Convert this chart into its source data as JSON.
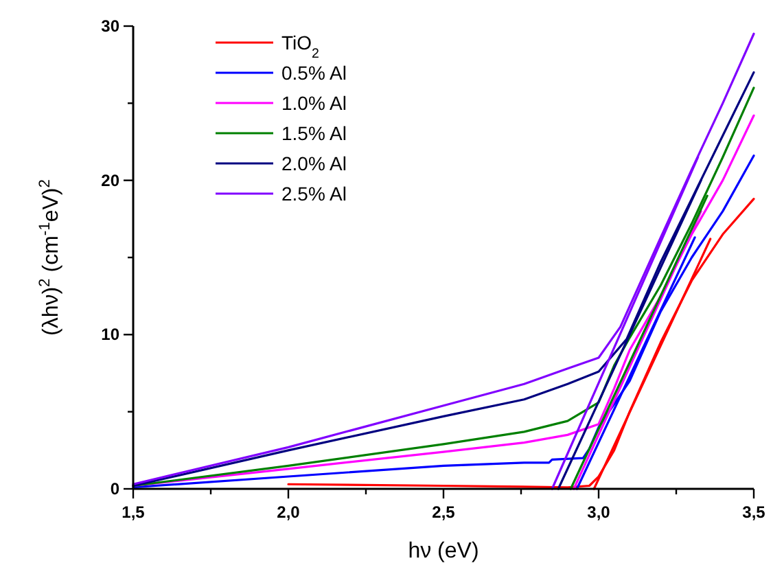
{
  "chart_data": {
    "type": "line",
    "xlabel": "hν (eV)",
    "ylabel": "(λhν)$^{2}$ (cm$^{-1}$eV)$^{2}$",
    "xlim": [
      1.5,
      3.5
    ],
    "xticks": [
      {
        "value": 1.5,
        "label": "1,5"
      },
      {
        "value": 1.75,
        "label": null
      },
      {
        "value": 2.0,
        "label": "2,0"
      },
      {
        "value": 2.25,
        "label": null
      },
      {
        "value": 2.5,
        "label": "2,5"
      },
      {
        "value": 2.75,
        "label": null
      },
      {
        "value": 3.0,
        "label": "3,0"
      },
      {
        "value": 3.25,
        "label": null
      },
      {
        "value": 3.5,
        "label": "3,5"
      }
    ],
    "ylim": [
      0,
      30
    ],
    "yticks": [
      0,
      {
        "value": 5,
        "label": null
      },
      10,
      {
        "value": 15,
        "label": null
      },
      20,
      {
        "value": 25,
        "label": null
      },
      30
    ],
    "legend": "top left",
    "grid": false,
    "marker": "none",
    "line_style": "solid",
    "series": [
      {
        "name": "TiO$_{2}$",
        "color": "#ff0000",
        "x": [
          2.0,
          2.5,
          2.9,
          2.97,
          3.0,
          3.05,
          3.1,
          3.2,
          3.3,
          3.4,
          3.5
        ],
        "values": [
          0.3,
          0.2,
          0.1,
          0.2,
          0.8,
          2.5,
          5,
          9.5,
          13.5,
          16.5,
          18.8
        ]
      },
      {
        "name": "0.5% Al",
        "color": "#0000ff",
        "x": [
          1.5,
          2.0,
          2.5,
          2.76,
          2.84,
          2.85,
          2.95,
          2.97,
          3.0,
          3.1,
          3.2,
          3.3,
          3.4,
          3.5
        ],
        "values": [
          0.1,
          0.8,
          1.5,
          1.7,
          1.7,
          1.9,
          2.0,
          2.6,
          4,
          7,
          11.5,
          15,
          18,
          21.6
        ]
      },
      {
        "name": "1.0% Al",
        "color": "#ff00ff",
        "x": [
          1.5,
          2.0,
          2.5,
          2.76,
          2.9,
          3.0,
          3.05,
          3.1,
          3.2,
          3.3,
          3.4,
          3.5
        ],
        "values": [
          0.2,
          1.3,
          2.4,
          3.0,
          3.5,
          4.2,
          6.5,
          9,
          12.5,
          16.5,
          20,
          24.2
        ]
      },
      {
        "name": "1.5% Al",
        "color": "#008000",
        "x": [
          1.5,
          2.0,
          2.5,
          2.76,
          2.9,
          3.0,
          3.05,
          3.1,
          3.2,
          3.3,
          3.4,
          3.5
        ],
        "values": [
          0.2,
          1.5,
          2.9,
          3.7,
          4.4,
          5.6,
          8,
          9.8,
          13.2,
          17.2,
          21.5,
          26
        ]
      },
      {
        "name": "2.0% Al",
        "color": "#000080",
        "x": [
          1.5,
          2.0,
          2.5,
          2.76,
          2.9,
          3.0,
          3.09,
          3.2,
          3.3,
          3.4,
          3.5
        ],
        "values": [
          0.2,
          2.5,
          4.7,
          5.8,
          6.8,
          7.6,
          9.7,
          14.7,
          18.8,
          22.9,
          27
        ]
      },
      {
        "name": "2.5% Al",
        "color": "#8000ff",
        "x": [
          1.5,
          2.0,
          2.5,
          2.76,
          2.9,
          3.0,
          3.07,
          3.2,
          3.3,
          3.4,
          3.5
        ],
        "values": [
          0.3,
          2.7,
          5.4,
          6.8,
          7.8,
          8.5,
          10.5,
          16.3,
          20.7,
          25,
          29.5
        ]
      },
      {
        "color": "#ff0000",
        "x": [
          2.985,
          3.36
        ],
        "values": [
          0,
          16.2
        ]
      },
      {
        "color": "#0000ff",
        "x": [
          2.93,
          3.31
        ],
        "values": [
          0,
          16.3
        ]
      },
      {
        "color": "#ff00ff",
        "x": [
          2.92,
          3.33
        ],
        "values": [
          0,
          18
        ]
      },
      {
        "color": "#008000",
        "x": [
          2.91,
          3.35
        ],
        "values": [
          0,
          19
        ]
      },
      {
        "color": "#000080",
        "x": [
          2.87,
          3.33
        ],
        "values": [
          0,
          20
        ]
      },
      {
        "color": "#8000ff",
        "x": [
          2.85,
          3.32
        ],
        "values": [
          0,
          21.5
        ]
      }
    ]
  }
}
